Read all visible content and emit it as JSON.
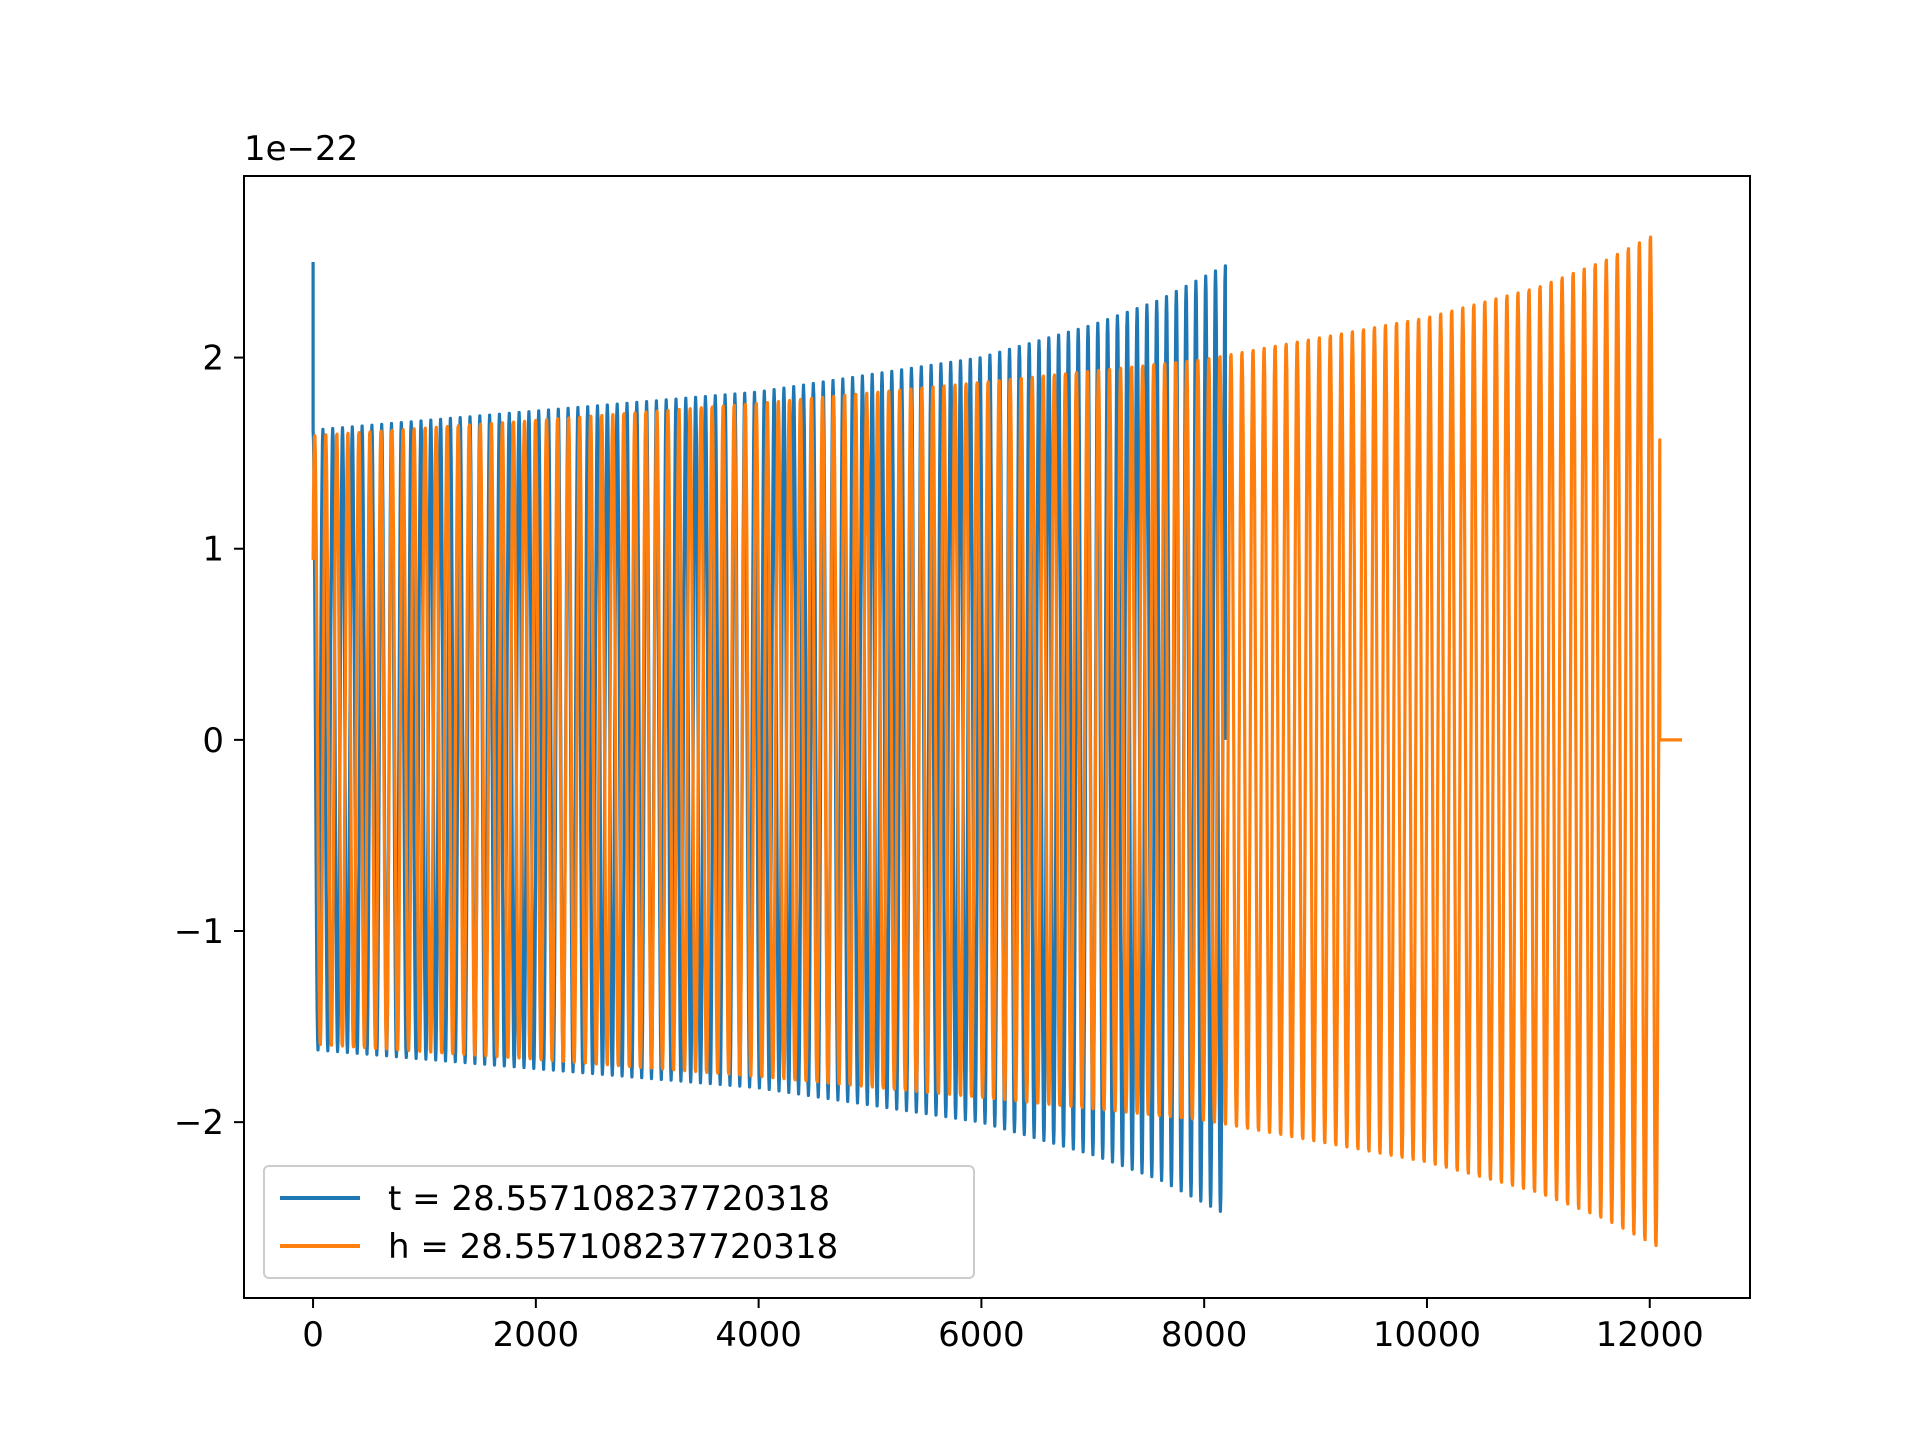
{
  "chart_data": {
    "type": "line",
    "title": "",
    "xlabel": "",
    "ylabel": "",
    "y_offset_label": "1e−22",
    "xlim": [
      -620,
      12900
    ],
    "ylim": [
      -2.92,
      2.95
    ],
    "x_ticks": [
      0,
      2000,
      4000,
      6000,
      8000,
      10000,
      12000
    ],
    "x_tick_labels": [
      "0",
      "2000",
      "4000",
      "6000",
      "8000",
      "10000",
      "12000"
    ],
    "y_ticks": [
      -2,
      -1,
      0,
      1,
      2
    ],
    "y_tick_labels": [
      "−2",
      "−1",
      "0",
      "1",
      "2"
    ],
    "grid": false,
    "legend_position": "lower-left",
    "series": [
      {
        "name": "t = 28.557108237720318",
        "color": "#1f77b4",
        "x_start": 0,
        "x_end": 8190,
        "zero_tail_until": 8190,
        "cycles": 93,
        "envelope": [
          {
            "x": 0,
            "amp": 1.62
          },
          {
            "x": 2000,
            "amp": 1.72
          },
          {
            "x": 4000,
            "amp": 1.82
          },
          {
            "x": 6000,
            "amp": 2.0
          },
          {
            "x": 7000,
            "amp": 2.17
          },
          {
            "x": 7600,
            "amp": 2.3
          },
          {
            "x": 8190,
            "amp": 2.48
          }
        ],
        "initial_spike": {
          "x": 0,
          "y": 2.5
        }
      },
      {
        "name": "h = 28.557108237720318",
        "color": "#ff7f0e",
        "x_start": 0,
        "x_end": 12090,
        "zero_tail_until": 12290,
        "cycles": 122,
        "envelope": [
          {
            "x": 0,
            "amp": 1.6
          },
          {
            "x": 2000,
            "amp": 1.68
          },
          {
            "x": 4000,
            "amp": 1.77
          },
          {
            "x": 6000,
            "amp": 1.88
          },
          {
            "x": 8000,
            "amp": 2.0
          },
          {
            "x": 10000,
            "amp": 2.22
          },
          {
            "x": 11000,
            "amp": 2.38
          },
          {
            "x": 11600,
            "amp": 2.52
          },
          {
            "x": 12090,
            "amp": 2.67
          }
        ]
      }
    ]
  }
}
